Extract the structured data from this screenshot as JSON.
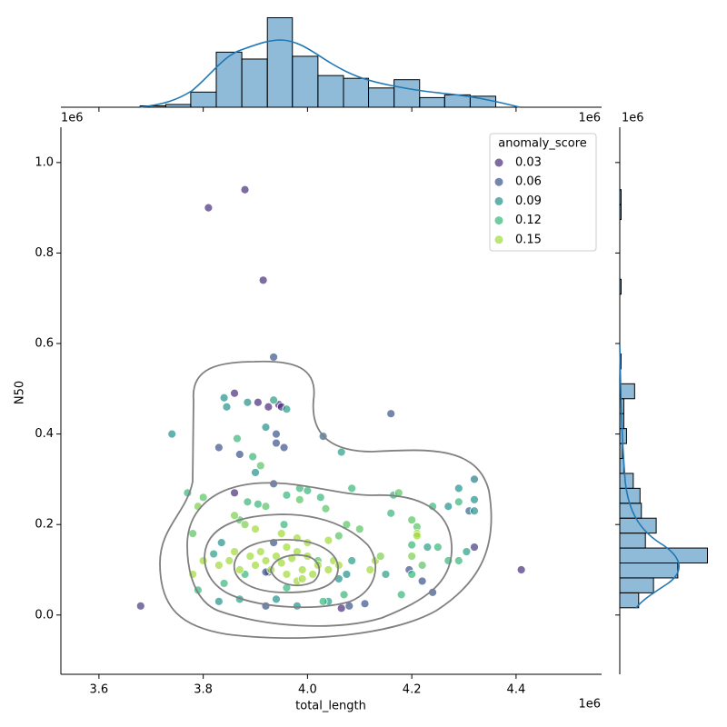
{
  "chart_data": [
    {
      "type": "scatter",
      "x_label": "total_length",
      "y_label": "N50",
      "offset_label": "1e6",
      "xlim": [
        3.527,
        4.564
      ],
      "xticks": [
        3.6,
        3.8,
        {
          "value": 4,
          "label": "4.0"
        },
        4.2,
        4.4
      ],
      "ylim": [
        -0.131,
        1.078
      ],
      "yticks": [
        {
          "value": 0,
          "label": "0.0"
        },
        0.2,
        0.4,
        0.6,
        0.8,
        {
          "value": 1,
          "label": "1.0"
        }
      ],
      "legend": {
        "title": "anomaly_score",
        "levels": [
          0.03,
          0.06,
          0.09,
          0.12,
          0.15
        ],
        "colors": [
          "#472c7a",
          "#3b528b",
          "#21918c",
          "#35b779",
          "#a0da39"
        ],
        "corner": "upper right"
      },
      "x": [
        3.81,
        3.88,
        3.915,
        3.68,
        4.41,
        4.32,
        4.065,
        3.86,
        3.905,
        3.925,
        3.945,
        3.95,
        3.86,
        3.925,
        4.16,
        3.935,
        3.94,
        3.94,
        3.955,
        3.83,
        3.87,
        4.03,
        4.31,
        4.24,
        4.08,
        4.11,
        3.92,
        4.22,
        4.195,
        3.92,
        3.935,
        3.935,
        3.74,
        3.845,
        3.84,
        3.885,
        3.935,
        3.96,
        3.92,
        4.065,
        3.9,
        4.32,
        4.32,
        4.29,
        4.32,
        4.27,
        4.305,
        4.23,
        3.83,
        3.87,
        3.94,
        3.98,
        4.04,
        4.075,
        4.06,
        4.15,
        3.82,
        3.835,
        4.085,
        3.77,
        3.8,
        3.865,
        3.895,
        3.91,
        3.885,
        3.905,
        3.96,
        3.985,
        4.0,
        3.985,
        4.025,
        4.085,
        4.165,
        4.175,
        4.24,
        4.29,
        4.21,
        4.2,
        4.16,
        4.06,
        4.075,
        4.1,
        3.78,
        3.87,
        3.92,
        3.955,
        4.035,
        4.2,
        4.25,
        4.29,
        4.27,
        4.2,
        4.18,
        4.22,
        3.79,
        3.84,
        3.88,
        4.03,
        4.07,
        3.96,
        4.02,
        3.83,
        3.85,
        3.86,
        3.87,
        3.89,
        3.9,
        3.91,
        3.92,
        3.93,
        3.94,
        3.95,
        3.96,
        3.97,
        3.98,
        3.99,
        4.0,
        4.01,
        4.02,
        4.04,
        4.05,
        3.96,
        3.98,
        3.95,
        4.0,
        4.04,
        3.88,
        3.9,
        3.79,
        3.78,
        3.8,
        4.12,
        4.13,
        4.21,
        4.21,
        4.2,
        4.14,
        3.98,
        3.99,
        4.06,
        3.86
      ],
      "y": [
        0.9,
        0.94,
        0.74,
        0.02,
        0.1,
        0.15,
        0.015,
        0.49,
        0.47,
        0.46,
        0.465,
        0.46,
        0.27,
        0.095,
        0.445,
        0.57,
        0.4,
        0.38,
        0.37,
        0.37,
        0.355,
        0.395,
        0.23,
        0.05,
        0.02,
        0.025,
        0.02,
        0.075,
        0.1,
        0.095,
        0.16,
        0.29,
        0.4,
        0.46,
        0.48,
        0.47,
        0.475,
        0.455,
        0.415,
        0.36,
        0.315,
        0.3,
        0.255,
        0.28,
        0.23,
        0.24,
        0.14,
        0.15,
        0.03,
        0.035,
        0.035,
        0.02,
        0.03,
        0.09,
        0.08,
        0.09,
        0.135,
        0.16,
        0.12,
        0.27,
        0.26,
        0.39,
        0.35,
        0.33,
        0.25,
        0.245,
        0.265,
        0.28,
        0.275,
        0.255,
        0.26,
        0.28,
        0.265,
        0.27,
        0.24,
        0.25,
        0.195,
        0.21,
        0.225,
        0.175,
        0.2,
        0.19,
        0.18,
        0.21,
        0.24,
        0.2,
        0.235,
        0.155,
        0.15,
        0.12,
        0.12,
        0.09,
        0.045,
        0.11,
        0.055,
        0.07,
        0.09,
        0.03,
        0.045,
        0.06,
        0.12,
        0.11,
        0.12,
        0.14,
        0.1,
        0.13,
        0.11,
        0.14,
        0.12,
        0.1,
        0.13,
        0.115,
        0.09,
        0.125,
        0.14,
        0.1,
        0.13,
        0.09,
        0.11,
        0.1,
        0.12,
        0.15,
        0.17,
        0.18,
        0.16,
        0.165,
        0.2,
        0.19,
        0.24,
        0.09,
        0.12,
        0.1,
        0.12,
        0.18,
        0.175,
        0.13,
        0.13,
        0.075,
        0.08,
        0.11,
        0.22
      ],
      "hue": [
        0.02,
        0.03,
        0.03,
        0.04,
        0.03,
        0.04,
        0.03,
        0.03,
        0.03,
        0.03,
        0.03,
        0.02,
        0.02,
        0.02,
        0.06,
        0.06,
        0.06,
        0.06,
        0.06,
        0.06,
        0.06,
        0.07,
        0.07,
        0.06,
        0.06,
        0.06,
        0.06,
        0.06,
        0.06,
        0.06,
        0.06,
        0.06,
        0.09,
        0.09,
        0.09,
        0.09,
        0.1,
        0.1,
        0.09,
        0.1,
        0.09,
        0.08,
        0.09,
        0.09,
        0.09,
        0.09,
        0.1,
        0.1,
        0.09,
        0.1,
        0.09,
        0.09,
        0.1,
        0.09,
        0.09,
        0.1,
        0.1,
        0.09,
        0.1,
        0.12,
        0.13,
        0.12,
        0.12,
        0.13,
        0.12,
        0.12,
        0.12,
        0.12,
        0.12,
        0.13,
        0.12,
        0.12,
        0.12,
        0.13,
        0.12,
        0.12,
        0.13,
        0.13,
        0.12,
        0.13,
        0.13,
        0.13,
        0.13,
        0.13,
        0.13,
        0.12,
        0.13,
        0.12,
        0.12,
        0.12,
        0.12,
        0.12,
        0.12,
        0.13,
        0.12,
        0.12,
        0.12,
        0.12,
        0.12,
        0.12,
        0.13,
        0.15,
        0.15,
        0.15,
        0.15,
        0.15,
        0.15,
        0.15,
        0.15,
        0.15,
        0.15,
        0.15,
        0.15,
        0.15,
        0.15,
        0.15,
        0.15,
        0.15,
        0.15,
        0.15,
        0.15,
        0.15,
        0.15,
        0.15,
        0.15,
        0.15,
        0.14,
        0.15,
        0.14,
        0.15,
        0.15,
        0.15,
        0.15,
        0.15,
        0.15,
        0.14,
        0.14,
        0.15,
        0.15,
        0.15,
        0.14
      ]
    },
    {
      "type": "histogram",
      "orientation": "vertical",
      "color": "#1f77b4",
      "bins": [
        3.679,
        3.728,
        3.776,
        3.825,
        3.874,
        3.923,
        3.971,
        4.02,
        4.069,
        4.117,
        4.166,
        4.215,
        4.263,
        4.312,
        4.361
      ],
      "counts": [
        1,
        2,
        11,
        40,
        35,
        65,
        37,
        23,
        21,
        14,
        20,
        7,
        9,
        8
      ],
      "ylim": [
        0,
        66
      ]
    },
    {
      "type": "histogram",
      "orientation": "horizontal",
      "color": "#1f77b4",
      "bins": [
        0.016,
        0.049,
        0.082,
        0.115,
        0.148,
        0.181,
        0.214,
        0.247,
        0.28,
        0.313,
        0.346,
        0.379,
        0.412,
        0.445,
        0.478,
        0.511,
        0.544,
        0.577,
        0.61,
        0.643,
        0.676,
        0.709,
        0.742,
        0.775,
        0.808,
        0.841,
        0.874,
        0.907,
        0.94
      ],
      "counts": [
        14,
        25,
        43,
        65,
        19,
        27,
        16,
        15,
        10,
        3,
        2,
        5,
        3,
        3,
        11,
        0,
        1,
        0,
        0,
        0,
        0,
        1,
        0,
        0,
        0,
        0,
        1,
        1
      ],
      "xlim": [
        0,
        66
      ]
    }
  ]
}
